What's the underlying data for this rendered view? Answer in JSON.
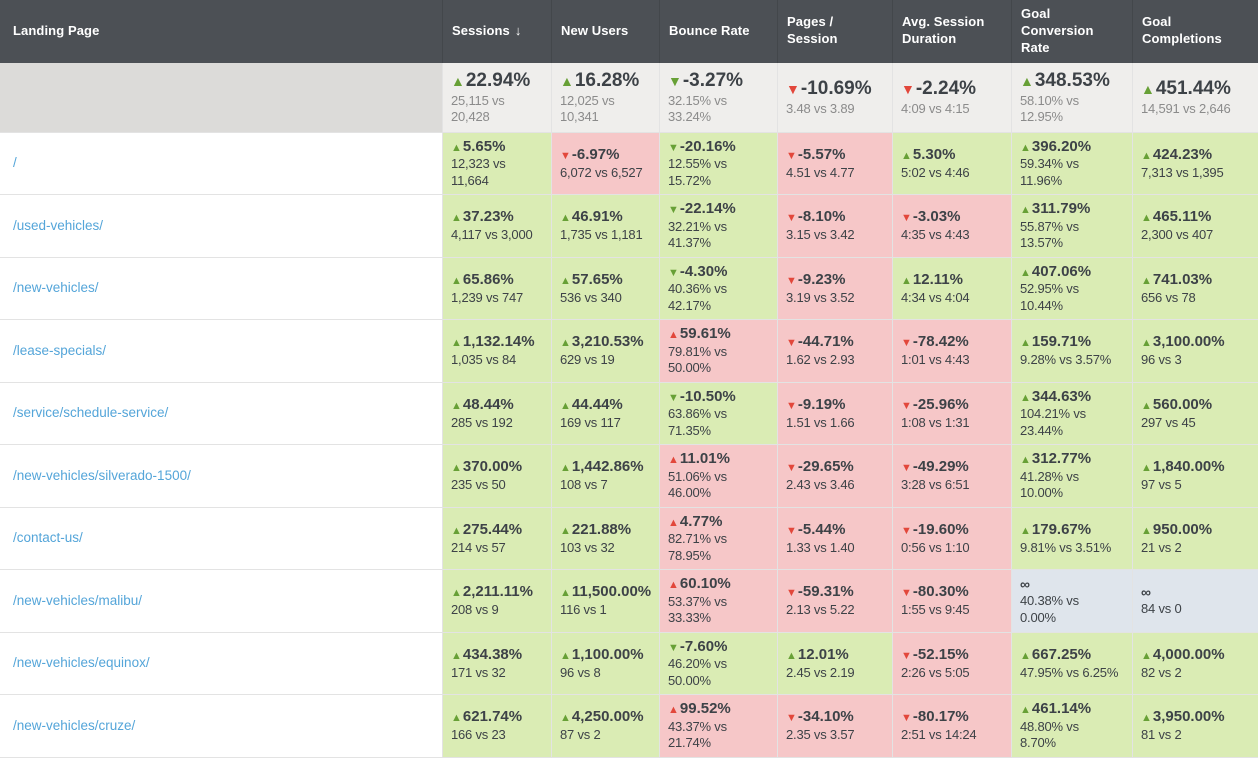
{
  "icons": {
    "up_triangle": "▲",
    "down_triangle": "▼",
    "sort_down": "↓"
  },
  "colors": {
    "header_bg": "#4c5055",
    "positive_bg": "#daecb4",
    "negative_bg": "#f6c7c8",
    "infinity_bg": "#dfe5ec",
    "up_arrow": "#67a036",
    "down_arrow": "#e2473b",
    "link": "#54a5d9"
  },
  "table": {
    "columns": [
      {
        "key": "landing-page",
        "label": "Landing Page"
      },
      {
        "key": "sessions",
        "label": "Sessions",
        "sort_icon": "↓"
      },
      {
        "key": "new-users",
        "label": "New Users"
      },
      {
        "key": "bounce-rate",
        "label": "Bounce Rate"
      },
      {
        "key": "pages-session",
        "label": "Pages / Session"
      },
      {
        "key": "avg-session-duration",
        "label": "Avg. Session Duration"
      },
      {
        "key": "goal-conversion-rate",
        "label": "Goal Conversion Rate"
      },
      {
        "key": "goal-completions",
        "label": "Goal Completions"
      }
    ],
    "summary": {
      "cells": [
        {
          "arrow": "up",
          "arrow_color": "green",
          "value": "22.94%",
          "compare": "25,115 vs\n20,428"
        },
        {
          "arrow": "up",
          "arrow_color": "green",
          "value": "16.28%",
          "compare": "12,025 vs 10,341"
        },
        {
          "arrow": "down",
          "arrow_color": "green",
          "value": "-3.27%",
          "compare": "32.15% vs\n33.24%"
        },
        {
          "arrow": "down",
          "arrow_color": "red",
          "value": "-10.69%",
          "compare": "3.48 vs 3.89"
        },
        {
          "arrow": "down",
          "arrow_color": "red",
          "value": "-2.24%",
          "compare": "4:09 vs 4:15"
        },
        {
          "arrow": "up",
          "arrow_color": "green",
          "value": "348.53%",
          "compare": "58.10% vs 12.95%"
        },
        {
          "arrow": "up",
          "arrow_color": "green",
          "value": "451.44%",
          "compare": "14,591 vs 2,646"
        }
      ]
    },
    "rows": [
      {
        "page": "/",
        "cells": [
          {
            "arrow": "up",
            "arrow_color": "green",
            "value": "5.65%",
            "compare": "12,323 vs\n11,664",
            "bg": "good"
          },
          {
            "arrow": "down",
            "arrow_color": "red",
            "value": "-6.97%",
            "compare": "6,072 vs 6,527",
            "bg": "bad"
          },
          {
            "arrow": "down",
            "arrow_color": "green",
            "value": "-20.16%",
            "compare": "12.55% vs\n15.72%",
            "bg": "good"
          },
          {
            "arrow": "down",
            "arrow_color": "red",
            "value": "-5.57%",
            "compare": "4.51 vs 4.77",
            "bg": "bad"
          },
          {
            "arrow": "up",
            "arrow_color": "green",
            "value": "5.30%",
            "compare": "5:02 vs 4:46",
            "bg": "good"
          },
          {
            "arrow": "up",
            "arrow_color": "green",
            "value": "396.20%",
            "compare": "59.34% vs\n11.96%",
            "bg": "good"
          },
          {
            "arrow": "up",
            "arrow_color": "green",
            "value": "424.23%",
            "compare": "7,313 vs 1,395",
            "bg": "good"
          }
        ]
      },
      {
        "page": "/used-vehicles/",
        "cells": [
          {
            "arrow": "up",
            "arrow_color": "green",
            "value": "37.23%",
            "compare": "4,117 vs 3,000",
            "bg": "good"
          },
          {
            "arrow": "up",
            "arrow_color": "green",
            "value": "46.91%",
            "compare": "1,735 vs 1,181",
            "bg": "good"
          },
          {
            "arrow": "down",
            "arrow_color": "green",
            "value": "-22.14%",
            "compare": "32.21% vs\n41.37%",
            "bg": "good"
          },
          {
            "arrow": "down",
            "arrow_color": "red",
            "value": "-8.10%",
            "compare": "3.15 vs 3.42",
            "bg": "bad"
          },
          {
            "arrow": "down",
            "arrow_color": "red",
            "value": "-3.03%",
            "compare": "4:35 vs 4:43",
            "bg": "bad"
          },
          {
            "arrow": "up",
            "arrow_color": "green",
            "value": "311.79%",
            "compare": "55.87% vs\n13.57%",
            "bg": "good"
          },
          {
            "arrow": "up",
            "arrow_color": "green",
            "value": "465.11%",
            "compare": "2,300 vs 407",
            "bg": "good"
          }
        ]
      },
      {
        "page": "/new-vehicles/",
        "cells": [
          {
            "arrow": "up",
            "arrow_color": "green",
            "value": "65.86%",
            "compare": "1,239 vs 747",
            "bg": "good"
          },
          {
            "arrow": "up",
            "arrow_color": "green",
            "value": "57.65%",
            "compare": "536 vs 340",
            "bg": "good"
          },
          {
            "arrow": "down",
            "arrow_color": "green",
            "value": "-4.30%",
            "compare": "40.36% vs\n42.17%",
            "bg": "good"
          },
          {
            "arrow": "down",
            "arrow_color": "red",
            "value": "-9.23%",
            "compare": "3.19 vs 3.52",
            "bg": "bad"
          },
          {
            "arrow": "up",
            "arrow_color": "green",
            "value": "12.11%",
            "compare": "4:34 vs 4:04",
            "bg": "good"
          },
          {
            "arrow": "up",
            "arrow_color": "green",
            "value": "407.06%",
            "compare": "52.95% vs\n10.44%",
            "bg": "good"
          },
          {
            "arrow": "up",
            "arrow_color": "green",
            "value": "741.03%",
            "compare": "656 vs 78",
            "bg": "good"
          }
        ]
      },
      {
        "page": "/lease-specials/",
        "cells": [
          {
            "arrow": "up",
            "arrow_color": "green",
            "value": "1,132.14%",
            "compare": "1,035 vs 84",
            "bg": "good"
          },
          {
            "arrow": "up",
            "arrow_color": "green",
            "value": "3,210.53%",
            "compare": "629 vs 19",
            "bg": "good"
          },
          {
            "arrow": "up",
            "arrow_color": "red",
            "value": "59.61%",
            "compare": "79.81% vs\n50.00%",
            "bg": "bad"
          },
          {
            "arrow": "down",
            "arrow_color": "red",
            "value": "-44.71%",
            "compare": "1.62 vs 2.93",
            "bg": "bad"
          },
          {
            "arrow": "down",
            "arrow_color": "red",
            "value": "-78.42%",
            "compare": "1:01 vs 4:43",
            "bg": "bad"
          },
          {
            "arrow": "up",
            "arrow_color": "green",
            "value": "159.71%",
            "compare": "9.28% vs 3.57%",
            "bg": "good"
          },
          {
            "arrow": "up",
            "arrow_color": "green",
            "value": "3,100.00%",
            "compare": "96 vs 3",
            "bg": "good"
          }
        ]
      },
      {
        "page": "/service/schedule-service/",
        "cells": [
          {
            "arrow": "up",
            "arrow_color": "green",
            "value": "48.44%",
            "compare": "285 vs 192",
            "bg": "good"
          },
          {
            "arrow": "up",
            "arrow_color": "green",
            "value": "44.44%",
            "compare": "169 vs 117",
            "bg": "good"
          },
          {
            "arrow": "down",
            "arrow_color": "green",
            "value": "-10.50%",
            "compare": "63.86% vs\n71.35%",
            "bg": "good"
          },
          {
            "arrow": "down",
            "arrow_color": "red",
            "value": "-9.19%",
            "compare": "1.51 vs 1.66",
            "bg": "bad"
          },
          {
            "arrow": "down",
            "arrow_color": "red",
            "value": "-25.96%",
            "compare": "1:08 vs 1:31",
            "bg": "bad"
          },
          {
            "arrow": "up",
            "arrow_color": "green",
            "value": "344.63%",
            "compare": "104.21% vs\n23.44%",
            "bg": "good"
          },
          {
            "arrow": "up",
            "arrow_color": "green",
            "value": "560.00%",
            "compare": "297 vs 45",
            "bg": "good"
          }
        ]
      },
      {
        "page": "/new-vehicles/silverado-1500/",
        "cells": [
          {
            "arrow": "up",
            "arrow_color": "green",
            "value": "370.00%",
            "compare": "235 vs 50",
            "bg": "good"
          },
          {
            "arrow": "up",
            "arrow_color": "green",
            "value": "1,442.86%",
            "compare": "108 vs 7",
            "bg": "good"
          },
          {
            "arrow": "up",
            "arrow_color": "red",
            "value": "11.01%",
            "compare": "51.06% vs\n46.00%",
            "bg": "bad"
          },
          {
            "arrow": "down",
            "arrow_color": "red",
            "value": "-29.65%",
            "compare": "2.43 vs 3.46",
            "bg": "bad"
          },
          {
            "arrow": "down",
            "arrow_color": "red",
            "value": "-49.29%",
            "compare": "3:28 vs 6:51",
            "bg": "bad"
          },
          {
            "arrow": "up",
            "arrow_color": "green",
            "value": "312.77%",
            "compare": "41.28% vs\n10.00%",
            "bg": "good"
          },
          {
            "arrow": "up",
            "arrow_color": "green",
            "value": "1,840.00%",
            "compare": "97 vs 5",
            "bg": "good"
          }
        ]
      },
      {
        "page": "/contact-us/",
        "cells": [
          {
            "arrow": "up",
            "arrow_color": "green",
            "value": "275.44%",
            "compare": "214 vs 57",
            "bg": "good"
          },
          {
            "arrow": "up",
            "arrow_color": "green",
            "value": "221.88%",
            "compare": "103 vs 32",
            "bg": "good"
          },
          {
            "arrow": "up",
            "arrow_color": "red",
            "value": "4.77%",
            "compare": "82.71% vs\n78.95%",
            "bg": "bad"
          },
          {
            "arrow": "down",
            "arrow_color": "red",
            "value": "-5.44%",
            "compare": "1.33 vs 1.40",
            "bg": "bad"
          },
          {
            "arrow": "down",
            "arrow_color": "red",
            "value": "-19.60%",
            "compare": "0:56 vs 1:10",
            "bg": "bad"
          },
          {
            "arrow": "up",
            "arrow_color": "green",
            "value": "179.67%",
            "compare": "9.81% vs 3.51%",
            "bg": "good"
          },
          {
            "arrow": "up",
            "arrow_color": "green",
            "value": "950.00%",
            "compare": "21 vs 2",
            "bg": "good"
          }
        ]
      },
      {
        "page": "/new-vehicles/malibu/",
        "cells": [
          {
            "arrow": "up",
            "arrow_color": "green",
            "value": "2,211.11%",
            "compare": "208 vs 9",
            "bg": "good"
          },
          {
            "arrow": "up",
            "arrow_color": "green",
            "value": "11,500.00%",
            "compare": "116 vs 1",
            "bg": "good"
          },
          {
            "arrow": "up",
            "arrow_color": "red",
            "value": "60.10%",
            "compare": "53.37% vs\n33.33%",
            "bg": "bad"
          },
          {
            "arrow": "down",
            "arrow_color": "red",
            "value": "-59.31%",
            "compare": "2.13 vs 5.22",
            "bg": "bad"
          },
          {
            "arrow": "down",
            "arrow_color": "red",
            "value": "-80.30%",
            "compare": "1:55 vs 9:45",
            "bg": "bad"
          },
          {
            "arrow": "",
            "arrow_color": "",
            "value": "∞",
            "compare": "40.38% vs\n0.00%",
            "bg": "inf"
          },
          {
            "arrow": "",
            "arrow_color": "",
            "value": "∞",
            "compare": "84 vs 0",
            "bg": "inf"
          }
        ]
      },
      {
        "page": "/new-vehicles/equinox/",
        "cells": [
          {
            "arrow": "up",
            "arrow_color": "green",
            "value": "434.38%",
            "compare": "171 vs 32",
            "bg": "good"
          },
          {
            "arrow": "up",
            "arrow_color": "green",
            "value": "1,100.00%",
            "compare": "96 vs 8",
            "bg": "good"
          },
          {
            "arrow": "down",
            "arrow_color": "green",
            "value": "-7.60%",
            "compare": "46.20% vs\n50.00%",
            "bg": "good"
          },
          {
            "arrow": "up",
            "arrow_color": "green",
            "value": "12.01%",
            "compare": "2.45 vs 2.19",
            "bg": "good"
          },
          {
            "arrow": "down",
            "arrow_color": "red",
            "value": "-52.15%",
            "compare": "2:26 vs 5:05",
            "bg": "bad"
          },
          {
            "arrow": "up",
            "arrow_color": "green",
            "value": "667.25%",
            "compare": "47.95% vs 6.25%",
            "bg": "good"
          },
          {
            "arrow": "up",
            "arrow_color": "green",
            "value": "4,000.00%",
            "compare": "82 vs 2",
            "bg": "good"
          }
        ]
      },
      {
        "page": "/new-vehicles/cruze/",
        "cells": [
          {
            "arrow": "up",
            "arrow_color": "green",
            "value": "621.74%",
            "compare": "166 vs 23",
            "bg": "good"
          },
          {
            "arrow": "up",
            "arrow_color": "green",
            "value": "4,250.00%",
            "compare": "87 vs 2",
            "bg": "good"
          },
          {
            "arrow": "up",
            "arrow_color": "red",
            "value": "99.52%",
            "compare": "43.37% vs\n21.74%",
            "bg": "bad"
          },
          {
            "arrow": "down",
            "arrow_color": "red",
            "value": "-34.10%",
            "compare": "2.35 vs 3.57",
            "bg": "bad"
          },
          {
            "arrow": "down",
            "arrow_color": "red",
            "value": "-80.17%",
            "compare": "2:51 vs 14:24",
            "bg": "bad"
          },
          {
            "arrow": "up",
            "arrow_color": "green",
            "value": "461.14%",
            "compare": "48.80% vs\n8.70%",
            "bg": "good"
          },
          {
            "arrow": "up",
            "arrow_color": "green",
            "value": "3,950.00%",
            "compare": "81 vs 2",
            "bg": "good"
          }
        ]
      }
    ]
  }
}
